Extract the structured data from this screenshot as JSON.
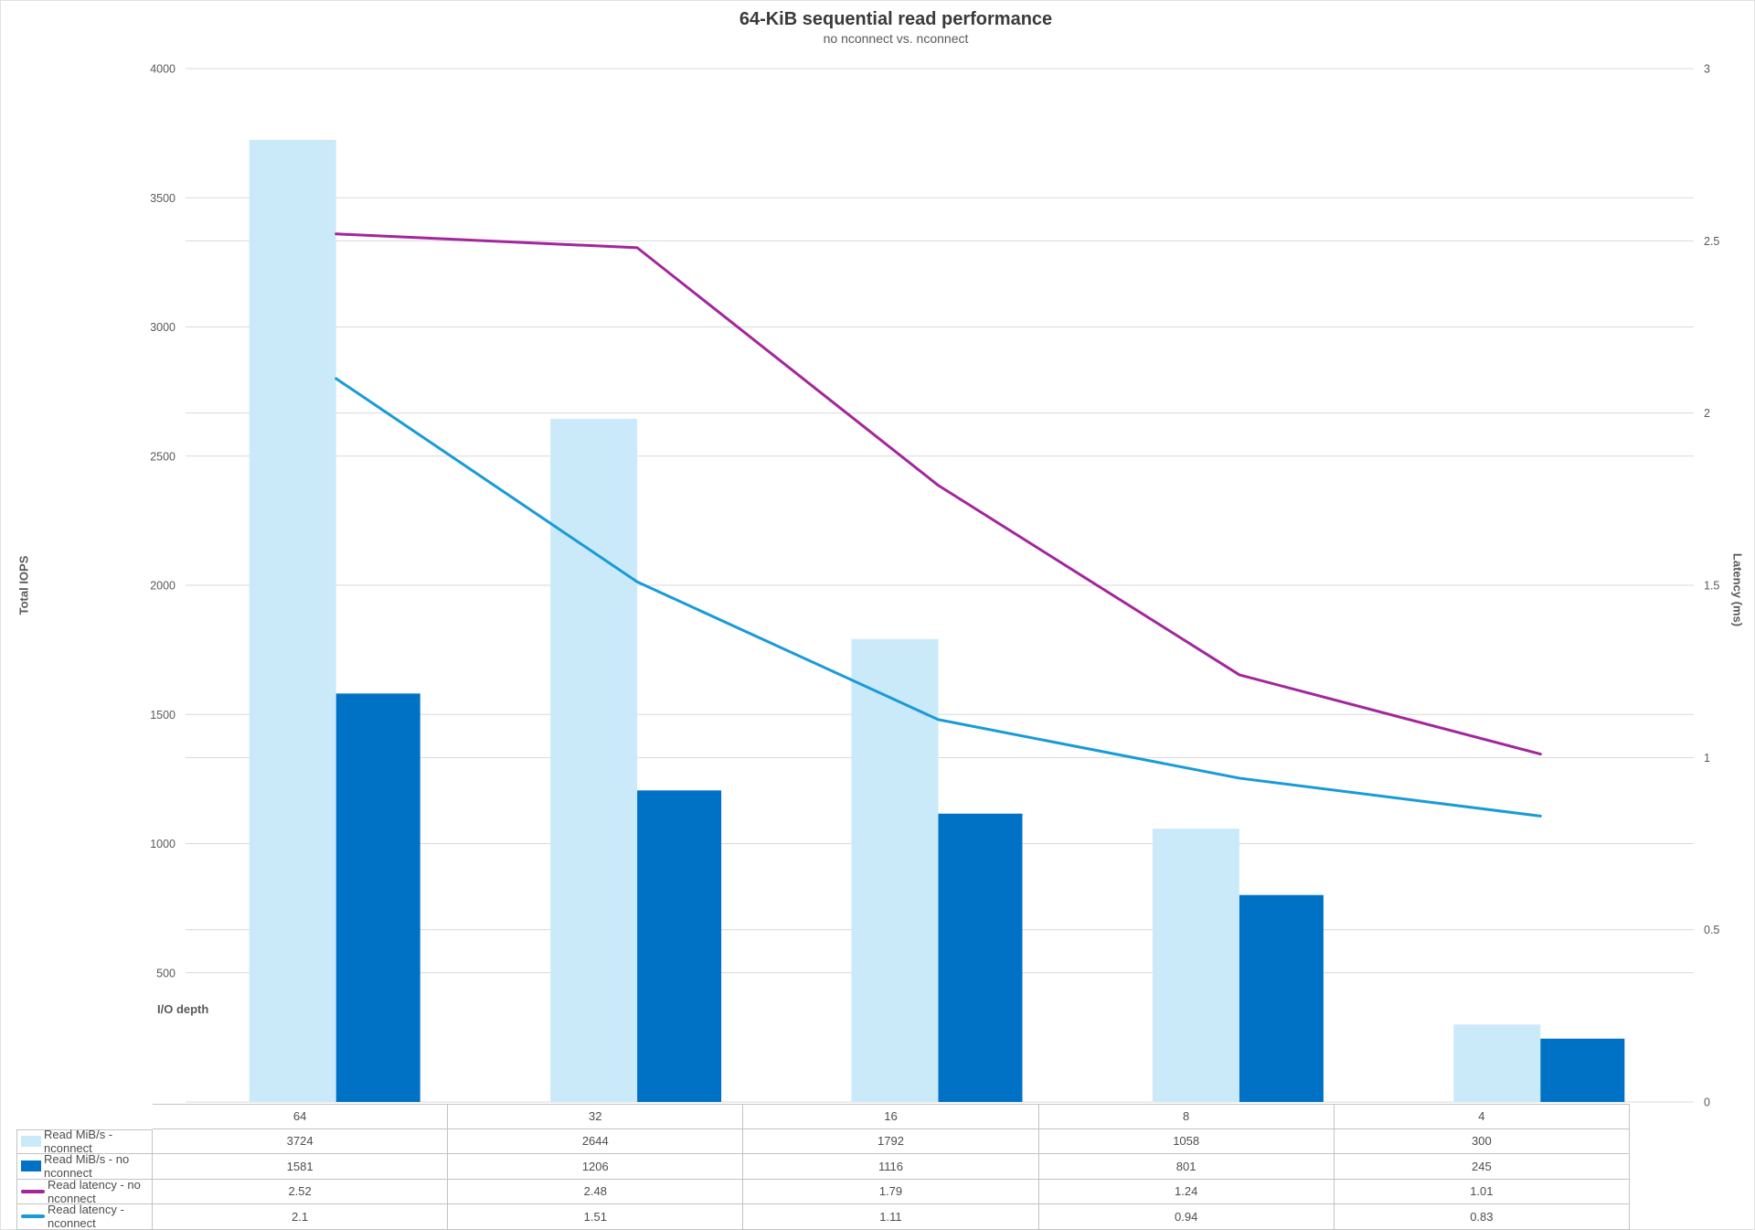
{
  "chart_data": {
    "type": "bar",
    "combo": "bars (left axis) + lines (right axis)",
    "title": "64-KiB sequential read performance",
    "subtitle": "no nconnect vs. nconnect",
    "categories": [
      "64",
      "32",
      "16",
      "8",
      "4"
    ],
    "series": [
      {
        "name": "Read MiB/s - nconnect",
        "kind": "bar",
        "axis": "left",
        "color": "#cbeaf9",
        "values": [
          3724,
          2644,
          1792,
          1058,
          300
        ]
      },
      {
        "name": "Read MiB/s - no nconnect",
        "kind": "bar",
        "axis": "left",
        "color": "#0072c6",
        "values": [
          1581,
          1206,
          1116,
          801,
          245
        ]
      },
      {
        "name": "Read latency - no nconnect",
        "kind": "line",
        "axis": "right",
        "color": "#a3269c",
        "values": [
          2.52,
          2.48,
          1.79,
          1.24,
          1.01
        ]
      },
      {
        "name": "Read latency - nconnect",
        "kind": "line",
        "axis": "right",
        "color": "#189bd8",
        "values": [
          2.1,
          1.51,
          1.11,
          0.94,
          0.83
        ]
      }
    ],
    "xlabel": "I/O depth",
    "ylabel": "Total IOPS",
    "ylabel_right": "Latency (ms)",
    "ylim_left": [
      0,
      4000
    ],
    "ytick_left": 500,
    "ylim_right": [
      0,
      3
    ],
    "ytick_right": 0.5,
    "grid": "on",
    "grid_color": "#d9d9d9",
    "legend_position": "table rows at bottom-left of data table"
  }
}
